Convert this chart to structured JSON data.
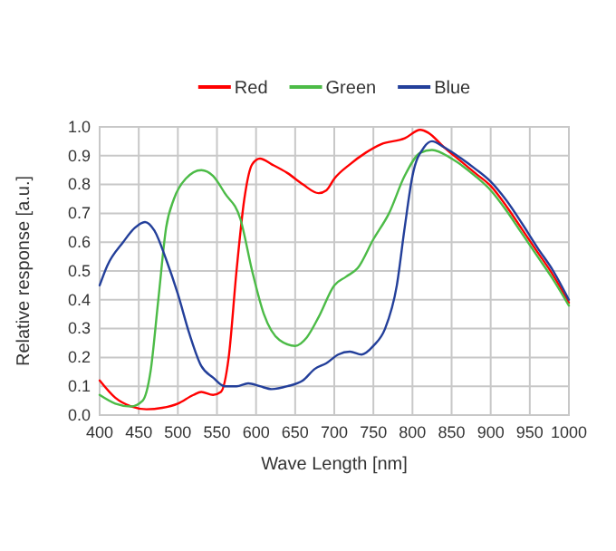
{
  "chart_data": {
    "type": "line",
    "xlabel": "Wave Length [nm]",
    "ylabel": "Relative response [a.u.]",
    "xlim": [
      400,
      1000
    ],
    "xticks": [
      400,
      450,
      500,
      550,
      600,
      650,
      700,
      750,
      800,
      850,
      900,
      950,
      1000
    ],
    "ylim": [
      0,
      1
    ],
    "yticks": [
      {
        "value": 0,
        "label": "0.0"
      },
      0.1,
      0.2,
      0.3,
      0.4,
      0.5,
      0.6,
      0.7,
      0.8,
      0.9,
      {
        "value": 1,
        "label": "1.0"
      }
    ],
    "grid": true,
    "legend": "top",
    "line_style": "solid",
    "marker": "none",
    "series": [
      {
        "name": "Red",
        "color": "#ff0000",
        "x": [
          400,
          420,
          440,
          460,
          480,
          500,
          520,
          530,
          545,
          555,
          565,
          575,
          585,
          595,
          605,
          620,
          640,
          660,
          680,
          690,
          700,
          720,
          740,
          760,
          790,
          810,
          820,
          840,
          860,
          880,
          900,
          920,
          940,
          960,
          980,
          1000
        ],
        "values": [
          0.12,
          0.06,
          0.03,
          0.02,
          0.025,
          0.04,
          0.07,
          0.08,
          0.07,
          0.08,
          0.2,
          0.5,
          0.75,
          0.87,
          0.89,
          0.87,
          0.84,
          0.8,
          0.77,
          0.78,
          0.82,
          0.87,
          0.91,
          0.94,
          0.96,
          0.99,
          0.98,
          0.93,
          0.885,
          0.84,
          0.795,
          0.725,
          0.645,
          0.565,
          0.485,
          0.39
        ]
      },
      {
        "name": "Green",
        "color": "#4cbb47",
        "x": [
          400,
          420,
          440,
          455,
          465,
          475,
          485,
          495,
          510,
          530,
          545,
          560,
          580,
          595,
          610,
          630,
          650,
          665,
          680,
          700,
          715,
          730,
          750,
          770,
          790,
          810,
          825,
          850,
          880,
          900,
          920,
          940,
          960,
          980,
          1000
        ],
        "values": [
          0.07,
          0.04,
          0.03,
          0.05,
          0.15,
          0.4,
          0.65,
          0.75,
          0.82,
          0.85,
          0.83,
          0.77,
          0.68,
          0.5,
          0.35,
          0.26,
          0.24,
          0.27,
          0.34,
          0.45,
          0.48,
          0.51,
          0.61,
          0.7,
          0.83,
          0.91,
          0.92,
          0.89,
          0.83,
          0.78,
          0.71,
          0.63,
          0.55,
          0.47,
          0.38
        ]
      },
      {
        "name": "Blue",
        "color": "#233f9a",
        "x": [
          400,
          410,
          430,
          445,
          458,
          470,
          485,
          500,
          515,
          530,
          545,
          560,
          575,
          590,
          605,
          620,
          640,
          660,
          675,
          690,
          705,
          720,
          735,
          750,
          765,
          780,
          790,
          800,
          815,
          825,
          840,
          860,
          880,
          900,
          920,
          940,
          960,
          980,
          1000
        ],
        "values": [
          0.45,
          0.52,
          0.6,
          0.65,
          0.67,
          0.64,
          0.54,
          0.42,
          0.28,
          0.17,
          0.13,
          0.1,
          0.1,
          0.11,
          0.1,
          0.09,
          0.1,
          0.12,
          0.16,
          0.18,
          0.21,
          0.22,
          0.21,
          0.24,
          0.3,
          0.45,
          0.65,
          0.83,
          0.93,
          0.95,
          0.93,
          0.895,
          0.855,
          0.81,
          0.745,
          0.665,
          0.58,
          0.5,
          0.4
        ]
      }
    ]
  }
}
